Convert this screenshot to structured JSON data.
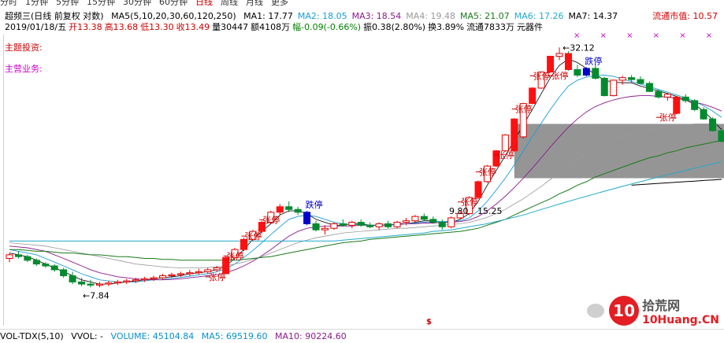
{
  "tabs": [
    "分时",
    "1分钟",
    "5分钟",
    "15分钟",
    "30分钟",
    "60分钟",
    "日线",
    "周线",
    "月线",
    "更多"
  ],
  "active_tab": "日线",
  "header": {
    "title": "超频三(日线 前复权 对数)",
    "ma_params": "MA5(5,10,20,30,60,120,250)",
    "ma": [
      {
        "label": "MA1: 17.77",
        "color": "#000000"
      },
      {
        "label": "MA2: 18.05",
        "color": "#1a9cd8"
      },
      {
        "label": "MA3: 18.54",
        "color": "#8b1a8b"
      },
      {
        "label": "MA4: 19.48",
        "color": "#999999"
      },
      {
        "label": "MA5: 21.07",
        "color": "#1a7a1a"
      },
      {
        "label": "MA6: 17.26",
        "color": "#22aacc"
      },
      {
        "label": "MA7: 14.37",
        "color": "#000000"
      }
    ],
    "market_cap": "流通市值: 10.57"
  },
  "info": [
    {
      "text": "2019/01/18/五",
      "color": "#000000"
    },
    {
      "text": "开13.38",
      "color": "#cc0000"
    },
    {
      "text": "高13.68",
      "color": "#cc0000"
    },
    {
      "text": "低13.30",
      "color": "#cc0000"
    },
    {
      "text": "收13.49",
      "color": "#cc0000"
    },
    {
      "text": "量30447",
      "color": "#000000"
    },
    {
      "text": "额4108万",
      "color": "#000000"
    },
    {
      "text": "幅-0.09(-0.66%)",
      "color": "#008000"
    },
    {
      "text": "振0.38(2.80%)",
      "color": "#000000"
    },
    {
      "text": "换3.89%",
      "color": "#000000"
    },
    {
      "text": "流通7833万",
      "color": "#000000"
    },
    {
      "text": "元器件",
      "color": "#000000"
    }
  ],
  "side_links": {
    "theme": "主题投资:",
    "business": "主营业务:"
  },
  "xmarks": "× × × × × ×",
  "dollar": "$",
  "volume_bar": {
    "name": "VOL-TDX(5,10)",
    "vvol": "VVOL: -",
    "volume": "VOLUME: 45104.84",
    "ma5": "MA5: 69519.60",
    "ma10": "MA10: 90224.60"
  },
  "watermark": {
    "text": "拾荒网",
    "url": "10Huang.CN"
  },
  "chart_data": {
    "type": "candlestick",
    "annotations": {
      "limit_up": "张停",
      "limit_down": "跌停",
      "low_label": "7.84",
      "high_label": "32.12",
      "price_a": "9.80",
      "price_b": "15.25"
    },
    "price_range": [
      6.5,
      34
    ],
    "scale": "log",
    "candles": [
      {
        "o": 9.3,
        "h": 9.6,
        "l": 9.1,
        "c": 9.5
      },
      {
        "o": 9.5,
        "h": 9.7,
        "l": 9.3,
        "c": 9.4
      },
      {
        "o": 9.4,
        "h": 9.5,
        "l": 9.1,
        "c": 9.2
      },
      {
        "o": 9.2,
        "h": 9.3,
        "l": 8.9,
        "c": 9.0
      },
      {
        "o": 9.0,
        "h": 9.1,
        "l": 8.8,
        "c": 8.9
      },
      {
        "o": 8.9,
        "h": 9.0,
        "l": 8.6,
        "c": 8.7
      },
      {
        "o": 8.7,
        "h": 8.8,
        "l": 8.3,
        "c": 8.4
      },
      {
        "o": 8.4,
        "h": 8.6,
        "l": 8.0,
        "c": 8.1
      },
      {
        "o": 8.1,
        "h": 8.3,
        "l": 7.9,
        "c": 8.0
      },
      {
        "o": 8.0,
        "h": 8.2,
        "l": 7.84,
        "c": 7.95
      },
      {
        "o": 7.95,
        "h": 8.1,
        "l": 7.85,
        "c": 8.0
      },
      {
        "o": 8.0,
        "h": 8.15,
        "l": 7.9,
        "c": 8.05
      },
      {
        "o": 8.05,
        "h": 8.2,
        "l": 7.95,
        "c": 8.1
      },
      {
        "o": 8.1,
        "h": 8.25,
        "l": 8.0,
        "c": 8.15
      },
      {
        "o": 8.15,
        "h": 8.3,
        "l": 8.05,
        "c": 8.2
      },
      {
        "o": 8.2,
        "h": 8.35,
        "l": 8.1,
        "c": 8.25
      },
      {
        "o": 8.25,
        "h": 8.4,
        "l": 8.15,
        "c": 8.3
      },
      {
        "o": 8.3,
        "h": 8.5,
        "l": 8.2,
        "c": 8.4
      },
      {
        "o": 8.4,
        "h": 8.55,
        "l": 8.3,
        "c": 8.45
      },
      {
        "o": 8.45,
        "h": 8.6,
        "l": 8.35,
        "c": 8.5
      },
      {
        "o": 8.5,
        "h": 8.7,
        "l": 8.4,
        "c": 8.55
      },
      {
        "o": 8.55,
        "h": 8.75,
        "l": 8.45,
        "c": 8.6
      },
      {
        "o": 8.6,
        "h": 8.8,
        "l": 8.5,
        "c": 8.7
      },
      {
        "o": 8.7,
        "h": 8.9,
        "l": 8.6,
        "c": 8.8
      },
      {
        "o": 8.5,
        "h": 9.4,
        "l": 8.5,
        "c": 9.35
      },
      {
        "o": 9.35,
        "h": 9.9,
        "l": 9.3,
        "c": 9.8
      },
      {
        "o": 9.8,
        "h": 10.5,
        "l": 9.7,
        "c": 10.4
      },
      {
        "o": 10.4,
        "h": 11.0,
        "l": 10.3,
        "c": 10.9
      },
      {
        "o": 10.9,
        "h": 11.6,
        "l": 10.8,
        "c": 11.5
      },
      {
        "o": 11.5,
        "h": 12.3,
        "l": 11.4,
        "c": 12.2
      },
      {
        "o": 12.2,
        "h": 12.8,
        "l": 12.0,
        "c": 12.6
      },
      {
        "o": 12.6,
        "h": 13.0,
        "l": 12.2,
        "c": 12.4
      },
      {
        "o": 12.4,
        "h": 12.6,
        "l": 12.0,
        "c": 12.2
      },
      {
        "o": 12.2,
        "h": 12.3,
        "l": 11.3,
        "c": 11.4
      },
      {
        "o": 11.4,
        "h": 11.6,
        "l": 10.9,
        "c": 11.0
      },
      {
        "o": 11.0,
        "h": 11.3,
        "l": 10.7,
        "c": 11.1
      },
      {
        "o": 11.1,
        "h": 11.5,
        "l": 11.0,
        "c": 11.4
      },
      {
        "o": 11.4,
        "h": 11.7,
        "l": 11.2,
        "c": 11.3
      },
      {
        "o": 11.3,
        "h": 11.6,
        "l": 11.1,
        "c": 11.5
      },
      {
        "o": 11.5,
        "h": 11.7,
        "l": 11.2,
        "c": 11.3
      },
      {
        "o": 11.3,
        "h": 11.5,
        "l": 11.1,
        "c": 11.2
      },
      {
        "o": 11.2,
        "h": 11.5,
        "l": 11.0,
        "c": 11.4
      },
      {
        "o": 11.4,
        "h": 11.6,
        "l": 11.1,
        "c": 11.2
      },
      {
        "o": 11.2,
        "h": 11.6,
        "l": 11.1,
        "c": 11.5
      },
      {
        "o": 11.5,
        "h": 11.8,
        "l": 11.3,
        "c": 11.6
      },
      {
        "o": 11.6,
        "h": 12.0,
        "l": 11.5,
        "c": 11.9
      },
      {
        "o": 11.9,
        "h": 12.1,
        "l": 11.6,
        "c": 11.7
      },
      {
        "o": 11.7,
        "h": 11.9,
        "l": 11.4,
        "c": 11.5
      },
      {
        "o": 11.5,
        "h": 11.7,
        "l": 11.0,
        "c": 11.2
      },
      {
        "o": 11.2,
        "h": 11.9,
        "l": 11.1,
        "c": 11.8
      },
      {
        "o": 11.8,
        "h": 12.3,
        "l": 11.7,
        "c": 12.1
      },
      {
        "o": 12.1,
        "h": 13.4,
        "l": 12.0,
        "c": 13.3
      },
      {
        "o": 13.3,
        "h": 14.7,
        "l": 13.2,
        "c": 14.6
      },
      {
        "o": 14.6,
        "h": 16.1,
        "l": 14.5,
        "c": 16.0
      },
      {
        "o": 16.0,
        "h": 17.6,
        "l": 15.9,
        "c": 17.5
      },
      {
        "o": 17.5,
        "h": 19.3,
        "l": 17.4,
        "c": 19.2
      },
      {
        "o": 17.5,
        "h": 21.2,
        "l": 17.4,
        "c": 21.1
      },
      {
        "o": 19.0,
        "h": 23.2,
        "l": 18.8,
        "c": 23.1
      },
      {
        "o": 23.1,
        "h": 25.4,
        "l": 23.0,
        "c": 25.3
      },
      {
        "o": 25.3,
        "h": 27.9,
        "l": 25.2,
        "c": 27.8
      },
      {
        "o": 27.8,
        "h": 30.6,
        "l": 27.7,
        "c": 30.5
      },
      {
        "o": 30.5,
        "h": 32.12,
        "l": 29.8,
        "c": 31.0
      },
      {
        "o": 31.0,
        "h": 31.4,
        "l": 28.0,
        "c": 28.2
      },
      {
        "o": 28.2,
        "h": 29.0,
        "l": 27.0,
        "c": 27.3
      },
      {
        "o": 27.3,
        "h": 28.6,
        "l": 27.1,
        "c": 28.4
      },
      {
        "o": 28.4,
        "h": 29.2,
        "l": 26.6,
        "c": 26.8
      },
      {
        "o": 26.8,
        "h": 27.0,
        "l": 24.1,
        "c": 24.2
      },
      {
        "o": 24.2,
        "h": 26.6,
        "l": 24.1,
        "c": 26.5
      },
      {
        "o": 26.5,
        "h": 27.2,
        "l": 25.8,
        "c": 26.9
      },
      {
        "o": 26.9,
        "h": 27.3,
        "l": 26.2,
        "c": 26.6
      },
      {
        "o": 26.6,
        "h": 27.1,
        "l": 25.9,
        "c": 26.0
      },
      {
        "o": 26.0,
        "h": 26.3,
        "l": 24.7,
        "c": 24.8
      },
      {
        "o": 24.8,
        "h": 25.1,
        "l": 23.8,
        "c": 24.0
      },
      {
        "o": 24.0,
        "h": 24.6,
        "l": 23.5,
        "c": 24.4
      },
      {
        "o": 21.8,
        "h": 24.1,
        "l": 21.7,
        "c": 24.0
      },
      {
        "o": 24.0,
        "h": 24.4,
        "l": 23.2,
        "c": 23.5
      },
      {
        "o": 23.5,
        "h": 23.7,
        "l": 22.1,
        "c": 22.3
      },
      {
        "o": 22.3,
        "h": 22.6,
        "l": 21.0,
        "c": 21.1
      },
      {
        "o": 21.1,
        "h": 21.3,
        "l": 19.6,
        "c": 19.7
      },
      {
        "o": 19.7,
        "h": 20.0,
        "l": 18.4,
        "c": 18.5
      }
    ],
    "limit_up_idx": [
      24,
      26,
      28,
      30,
      52,
      54,
      56,
      58,
      60,
      62,
      74
    ],
    "limit_down_idx": [
      33,
      64
    ],
    "ma_lines": [
      {
        "color": "#000000",
        "width": 0.8,
        "values": [
          9.6,
          9.5,
          9.4,
          9.2,
          9.0,
          8.8,
          8.6,
          8.4,
          8.2,
          8.1,
          8.0,
          8.0,
          8.05,
          8.1,
          8.15,
          8.2,
          8.25,
          8.3,
          8.35,
          8.4,
          8.5,
          8.55,
          8.6,
          8.7,
          8.9,
          9.3,
          9.8,
          10.4,
          10.9,
          11.4,
          12.0,
          12.3,
          12.3,
          12.1,
          11.7,
          11.5,
          11.3,
          11.3,
          11.4,
          11.4,
          11.3,
          11.3,
          11.3,
          11.4,
          11.4,
          11.5,
          11.6,
          11.6,
          11.5,
          11.5,
          11.7,
          12.1,
          13.0,
          14.3,
          15.6,
          17.0,
          18.6,
          20.4,
          22.3,
          24.5,
          26.9,
          28.9,
          30.0,
          29.4,
          28.4,
          27.4,
          26.5,
          26.2,
          26.1,
          26.1,
          25.6,
          25.2,
          24.9,
          24.5,
          24.1,
          23.6,
          23.0,
          22.1,
          21.0,
          19.8
        ]
      },
      {
        "color": "#1a9cd8",
        "width": 0.9,
        "values": [
          9.8,
          9.7,
          9.6,
          9.5,
          9.3,
          9.1,
          8.9,
          8.7,
          8.5,
          8.35,
          8.2,
          8.15,
          8.1,
          8.1,
          8.1,
          8.15,
          8.2,
          8.22,
          8.27,
          8.32,
          8.38,
          8.45,
          8.5,
          8.6,
          8.75,
          9.0,
          9.35,
          9.75,
          10.2,
          10.7,
          11.2,
          11.7,
          11.9,
          12.0,
          11.9,
          11.7,
          11.5,
          11.4,
          11.35,
          11.35,
          11.3,
          11.3,
          11.3,
          11.35,
          11.4,
          11.45,
          11.5,
          11.55,
          11.55,
          11.55,
          11.6,
          11.8,
          12.3,
          13.0,
          13.9,
          14.9,
          16.1,
          17.5,
          19.0,
          20.6,
          22.3,
          24.0,
          25.6,
          26.5,
          27.0,
          27.2,
          27.3,
          27.1,
          26.7,
          26.3,
          25.9,
          25.5,
          25.1,
          24.7,
          24.3,
          23.9,
          23.4,
          22.8,
          22.1,
          21.3
        ]
      },
      {
        "color": "#8b1a8b",
        "width": 0.9,
        "values": [
          10.0,
          9.95,
          9.9,
          9.8,
          9.7,
          9.5,
          9.3,
          9.1,
          8.9,
          8.7,
          8.55,
          8.45,
          8.35,
          8.3,
          8.25,
          8.22,
          8.2,
          8.2,
          8.22,
          8.25,
          8.3,
          8.35,
          8.4,
          8.45,
          8.55,
          8.7,
          8.9,
          9.15,
          9.45,
          9.8,
          10.2,
          10.6,
          10.9,
          11.1,
          11.2,
          11.25,
          11.25,
          11.25,
          11.25,
          11.3,
          11.3,
          11.3,
          11.35,
          11.35,
          11.4,
          11.4,
          11.45,
          11.45,
          11.5,
          11.5,
          11.55,
          11.65,
          11.9,
          12.3,
          12.8,
          13.4,
          14.1,
          14.9,
          15.8,
          16.8,
          17.9,
          19.0,
          20.1,
          21.1,
          22.0,
          22.7,
          23.2,
          23.6,
          23.9,
          24.1,
          24.2,
          24.2,
          24.1,
          24.0,
          23.8,
          23.6,
          23.3,
          23.0,
          22.6,
          22.1
        ]
      },
      {
        "color": "#999999",
        "width": 0.8,
        "values": [
          10.2,
          10.15,
          10.1,
          10.05,
          10.0,
          9.9,
          9.8,
          9.7,
          9.6,
          9.5,
          9.4,
          9.3,
          9.2,
          9.1,
          9.0,
          8.95,
          8.9,
          8.85,
          8.82,
          8.8,
          8.8,
          8.8,
          8.82,
          8.85,
          8.9,
          9.0,
          9.1,
          9.25,
          9.4,
          9.6,
          9.8,
          10.0,
          10.2,
          10.35,
          10.5,
          10.6,
          10.7,
          10.8,
          10.85,
          10.9,
          10.95,
          11.0,
          11.05,
          11.1,
          11.1,
          11.15,
          11.2,
          11.25,
          11.3,
          11.35,
          11.4,
          11.5,
          11.65,
          11.85,
          12.1,
          12.4,
          12.8,
          13.2,
          13.7,
          14.2,
          14.8,
          15.4,
          16.0,
          16.6,
          17.2,
          17.7,
          18.2,
          18.6,
          19.0,
          19.3,
          19.6,
          19.8,
          20.0,
          20.2,
          20.3,
          20.4,
          20.5,
          20.5,
          20.5,
          20.4
        ]
      },
      {
        "color": "#1a7a1a",
        "width": 1.0,
        "values": [
          9.8,
          9.8,
          9.75,
          9.7,
          9.7,
          9.65,
          9.6,
          9.6,
          9.55,
          9.5,
          9.5,
          9.45,
          9.4,
          9.4,
          9.35,
          9.3,
          9.3,
          9.25,
          9.25,
          9.2,
          9.2,
          9.2,
          9.2,
          9.2,
          9.2,
          9.2,
          9.25,
          9.3,
          9.35,
          9.4,
          9.5,
          9.6,
          9.7,
          9.8,
          9.9,
          10.0,
          10.1,
          10.2,
          10.25,
          10.3,
          10.4,
          10.45,
          10.5,
          10.55,
          10.6,
          10.65,
          10.7,
          10.75,
          10.8,
          10.85,
          10.9,
          11.0,
          11.1,
          11.3,
          11.5,
          11.7,
          12.0,
          12.3,
          12.6,
          12.9,
          13.2,
          13.6,
          13.9,
          14.3,
          14.6,
          15.0,
          15.3,
          15.6,
          15.9,
          16.2,
          16.5,
          16.8,
          17.0,
          17.3,
          17.5,
          17.8,
          18.0,
          18.2,
          18.4,
          18.6
        ]
      },
      {
        "color": "#22aacc",
        "width": 1.0,
        "values": [
          10.3,
          10.3,
          10.3,
          10.3,
          10.3,
          10.3,
          10.3,
          10.3,
          10.3,
          10.3,
          10.3,
          10.3,
          10.3,
          10.3,
          10.3,
          10.3,
          10.3,
          10.3,
          10.3,
          10.3,
          10.3,
          10.3,
          10.3,
          10.3,
          10.3,
          10.3,
          10.3,
          10.3,
          10.3,
          10.3,
          10.3,
          10.3,
          10.3,
          10.3,
          10.3,
          10.3,
          10.3,
          10.35,
          10.4,
          10.45,
          10.5,
          10.55,
          10.6,
          10.65,
          10.7,
          10.75,
          10.8,
          10.9,
          10.95,
          11.0,
          11.1,
          11.2,
          11.3,
          11.4,
          11.55,
          11.7,
          11.85,
          12.0,
          12.2,
          12.4,
          12.6,
          12.8,
          13.0,
          13.2,
          13.4,
          13.6,
          13.8,
          14.0,
          14.2,
          14.4,
          14.6,
          14.8,
          15.0,
          15.2,
          15.4,
          15.6,
          15.8,
          16.0,
          16.2,
          16.4
        ]
      },
      {
        "color": "#000000",
        "width": 1.0,
        "values": [
          null,
          null,
          null,
          null,
          null,
          null,
          null,
          null,
          null,
          null,
          null,
          null,
          null,
          null,
          null,
          null,
          null,
          null,
          null,
          null,
          null,
          null,
          null,
          null,
          null,
          null,
          null,
          null,
          null,
          null,
          null,
          null,
          null,
          null,
          null,
          null,
          null,
          null,
          null,
          null,
          null,
          null,
          null,
          null,
          null,
          null,
          null,
          null,
          null,
          null,
          null,
          null,
          null,
          null,
          null,
          null,
          null,
          null,
          null,
          null,
          null,
          null,
          null,
          null,
          null,
          null,
          null,
          null,
          null,
          14.3,
          14.35,
          14.4,
          14.45,
          14.5,
          14.55,
          14.6,
          14.65,
          14.7,
          14.75,
          14.8
        ]
      }
    ],
    "grey_band": {
      "top": 20.5,
      "bottom": 14.9,
      "start_idx": 56
    }
  }
}
